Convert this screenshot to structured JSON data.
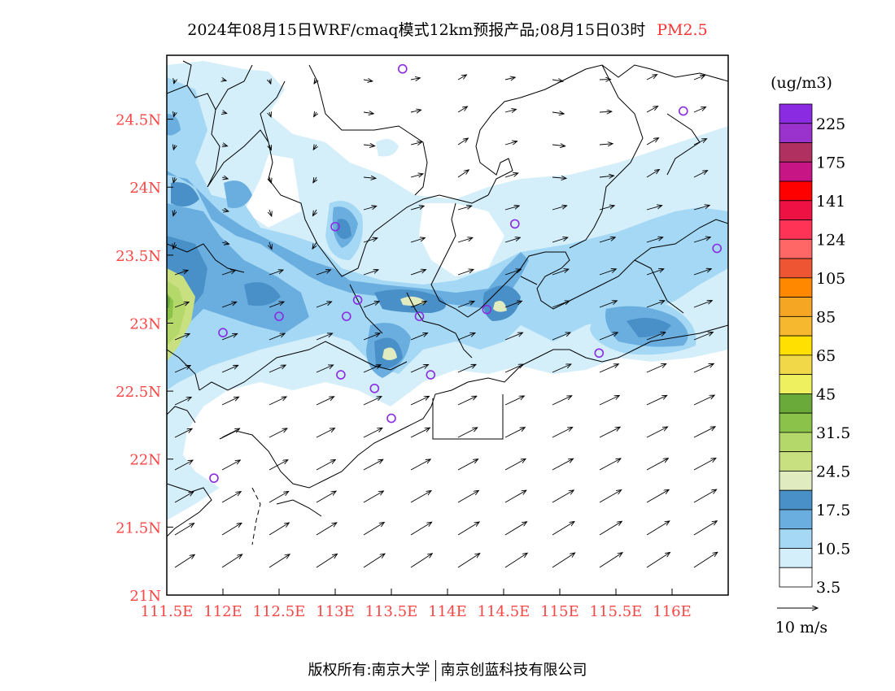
{
  "title": {
    "text": "2024年08月15日WRF/cmaq模式12km预报产品;08月15日03时",
    "variable": "PM2.5"
  },
  "axes": {
    "lat_ticks": [
      "24.5N",
      "24N",
      "23.5N",
      "23N",
      "22.5N",
      "22N",
      "21.5N",
      "21N"
    ],
    "lat_values": [
      24.5,
      24.0,
      23.5,
      23.0,
      22.5,
      22.0,
      21.5,
      21.0
    ],
    "lon_ticks": [
      "111.5E",
      "112E",
      "112.5E",
      "113E",
      "113.5E",
      "114E",
      "114.5E",
      "115E",
      "115.5E",
      "116E"
    ],
    "lon_values": [
      111.5,
      112.0,
      112.5,
      113.0,
      113.5,
      114.0,
      114.5,
      115.0,
      115.5,
      116.0
    ],
    "lon_range": [
      111.5,
      116.5
    ],
    "lat_range": [
      21.0,
      24.97
    ]
  },
  "legend": {
    "unit": "(ug/m3)",
    "labels": [
      "225",
      "175",
      "141",
      "124",
      "105",
      "85",
      "65",
      "45",
      "31.5",
      "24.5",
      "17.5",
      "10.5",
      "3.5"
    ],
    "colors": [
      "#8a2be2",
      "#9a32cd",
      "#b03060",
      "#c71585",
      "#ff0000",
      "#ee1144",
      "#ff3355",
      "#ff6666",
      "#ee5533",
      "#ff8800",
      "#f5a623",
      "#f5b82e",
      "#ffe000",
      "#f0d848",
      "#eef060",
      "#6aaa3a",
      "#8bc34a",
      "#b4d96a",
      "#c8e080",
      "#e0ecc0",
      "#4a90c8",
      "#6aaee0",
      "#a4d8f4",
      "#d4eefa",
      "#ffffff"
    ]
  },
  "wind_reference": {
    "label": "10 m/s"
  },
  "stations": [
    {
      "lon": 113.6,
      "lat": 24.87
    },
    {
      "lon": 116.1,
      "lat": 24.56
    },
    {
      "lon": 114.6,
      "lat": 23.73
    },
    {
      "lon": 113.0,
      "lat": 23.71
    },
    {
      "lon": 116.4,
      "lat": 23.55
    },
    {
      "lon": 113.2,
      "lat": 23.17
    },
    {
      "lon": 112.5,
      "lat": 23.05
    },
    {
      "lon": 113.1,
      "lat": 23.05
    },
    {
      "lon": 113.75,
      "lat": 23.05
    },
    {
      "lon": 114.35,
      "lat": 23.1
    },
    {
      "lon": 112.0,
      "lat": 22.93
    },
    {
      "lon": 115.35,
      "lat": 22.78
    },
    {
      "lon": 113.05,
      "lat": 22.62
    },
    {
      "lon": 113.35,
      "lat": 22.52
    },
    {
      "lon": 113.5,
      "lat": 22.3
    },
    {
      "lon": 113.85,
      "lat": 22.62
    },
    {
      "lon": 111.92,
      "lat": 21.86
    }
  ],
  "footer": {
    "left": "版权所有:南京大学",
    "right": "南京创蓝科技有限公司"
  }
}
